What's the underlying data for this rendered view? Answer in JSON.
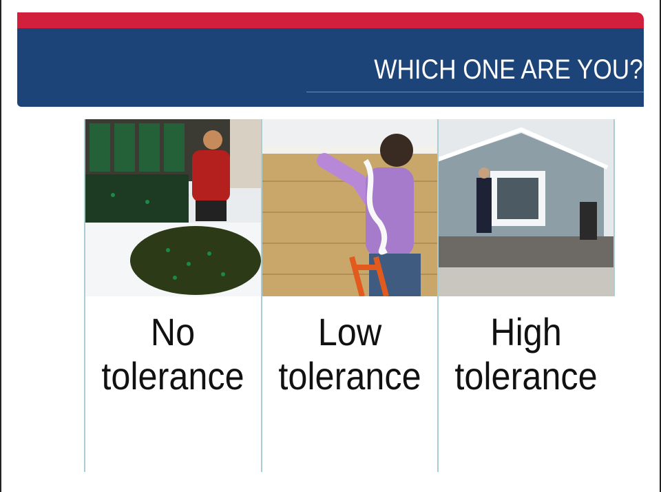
{
  "header": {
    "title": "WHICH ONE ARE YOU?"
  },
  "columns": [
    {
      "label": "No tolerance"
    },
    {
      "label": "Low tolerance"
    },
    {
      "label": "High tolerance"
    }
  ]
}
